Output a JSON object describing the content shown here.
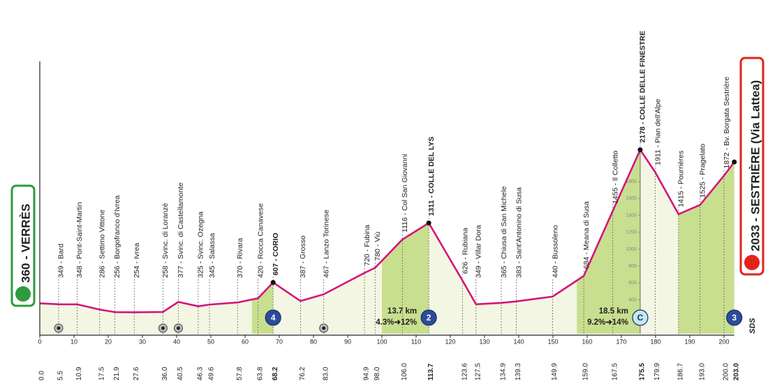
{
  "chart_data": {
    "type": "profile",
    "start": "360 - VERRÈS",
    "finish": "2033 - SESTRIÈRE (Via Lattea)",
    "logo": "SDS",
    "line_color": "#d4157c",
    "area_color": "#f3f6e2",
    "climb_color": "#c8df8f",
    "x": [
      {
        "value": 0,
        "label": "0.0"
      },
      5.5,
      10.9,
      17.5,
      21.9,
      27.6,
      {
        "value": 36,
        "label": "36.0"
      },
      40.5,
      46.3,
      49.6,
      57.8,
      63.8,
      68.2,
      76.2,
      {
        "value": 83,
        "label": "83.0"
      },
      94.9,
      {
        "value": 98,
        "label": "98.0"
      },
      {
        "value": 106,
        "label": "106.0"
      },
      113.7,
      123.6,
      127.5,
      134.9,
      139.3,
      149.9,
      {
        "value": 159,
        "label": "159.0"
      },
      167.5,
      175.5,
      179.9,
      186.7,
      {
        "value": 193,
        "label": "193.0"
      },
      {
        "value": 200,
        "label": "200.0"
      },
      {
        "value": 203,
        "label": "203.0"
      }
    ],
    "values": [
      360,
      349,
      348,
      286,
      256,
      254,
      258,
      377,
      325,
      345,
      370,
      420,
      607,
      387,
      467,
      720,
      780,
      1116,
      1311,
      626,
      349,
      365,
      383,
      440,
      684,
      1455,
      2178,
      1911,
      1415,
      1525,
      1872,
      2033
    ],
    "names": [
      "360 - VERRÈS",
      "349 - Bard",
      "348 - Pont-Saint-Martin",
      "286 - Settimo Vittone",
      "256 - Borgofranco d'Ivrea",
      "254 - Ivrea",
      "258 - Svinc. di Loranzè",
      "377 - Svinc. di Castellamonte",
      "325 - Svinc. Ozegna",
      "345 - Salassa",
      "370 - Rivara",
      "420 - Rocca Canavese",
      "607 - CORIO",
      "387 - Grosso",
      "467 - Lanzo Torinese",
      "720 - Fubina",
      "780 - Viù",
      "1116 - Col San Giovanni",
      "1311 - COLLE DEL LYS",
      "626 - Rubiana",
      "349 - Villar Dora",
      "365 - Chiusa di San Michele",
      "383 - Sant'Antonino di Susa",
      "440 - Bussoleno",
      "684 - Meana di Susa",
      "1455 - Il Colletto",
      "2178 - COLLE DELLE FINESTRE",
      "1911 - Pian dell'Alpe",
      "1415 - Pourrières",
      "1525 - Pragelato",
      "1872 - Bv. Borgata Sestrière",
      "2033 - SESTRIÈRE (Via Lattea)"
    ],
    "xlim": [
      0,
      203
    ],
    "ylim": [
      0,
      3000
    ],
    "xticks": [
      0,
      10,
      20,
      30,
      40,
      50,
      60,
      70,
      80,
      90,
      100,
      110,
      120,
      130,
      140,
      150,
      160,
      170,
      180,
      190,
      200
    ],
    "yticks": [
      400,
      600,
      800,
      1000,
      1200,
      1400,
      1600,
      1800
    ],
    "climbs": [
      {
        "from": 62,
        "to": 68.2,
        "category": "4"
      },
      {
        "from": 100,
        "to": 113.7,
        "category": "2",
        "length": "13.7 km",
        "gradient": "4.3%➜12%"
      },
      {
        "from": 157,
        "to": 175.5,
        "category": "C",
        "length": "18.5 km",
        "gradient": "9.2%➜14%"
      },
      {
        "from": 186.7,
        "to": 203,
        "category": "3"
      }
    ],
    "sprints": [
      5.5,
      36,
      40.5,
      83
    ]
  }
}
